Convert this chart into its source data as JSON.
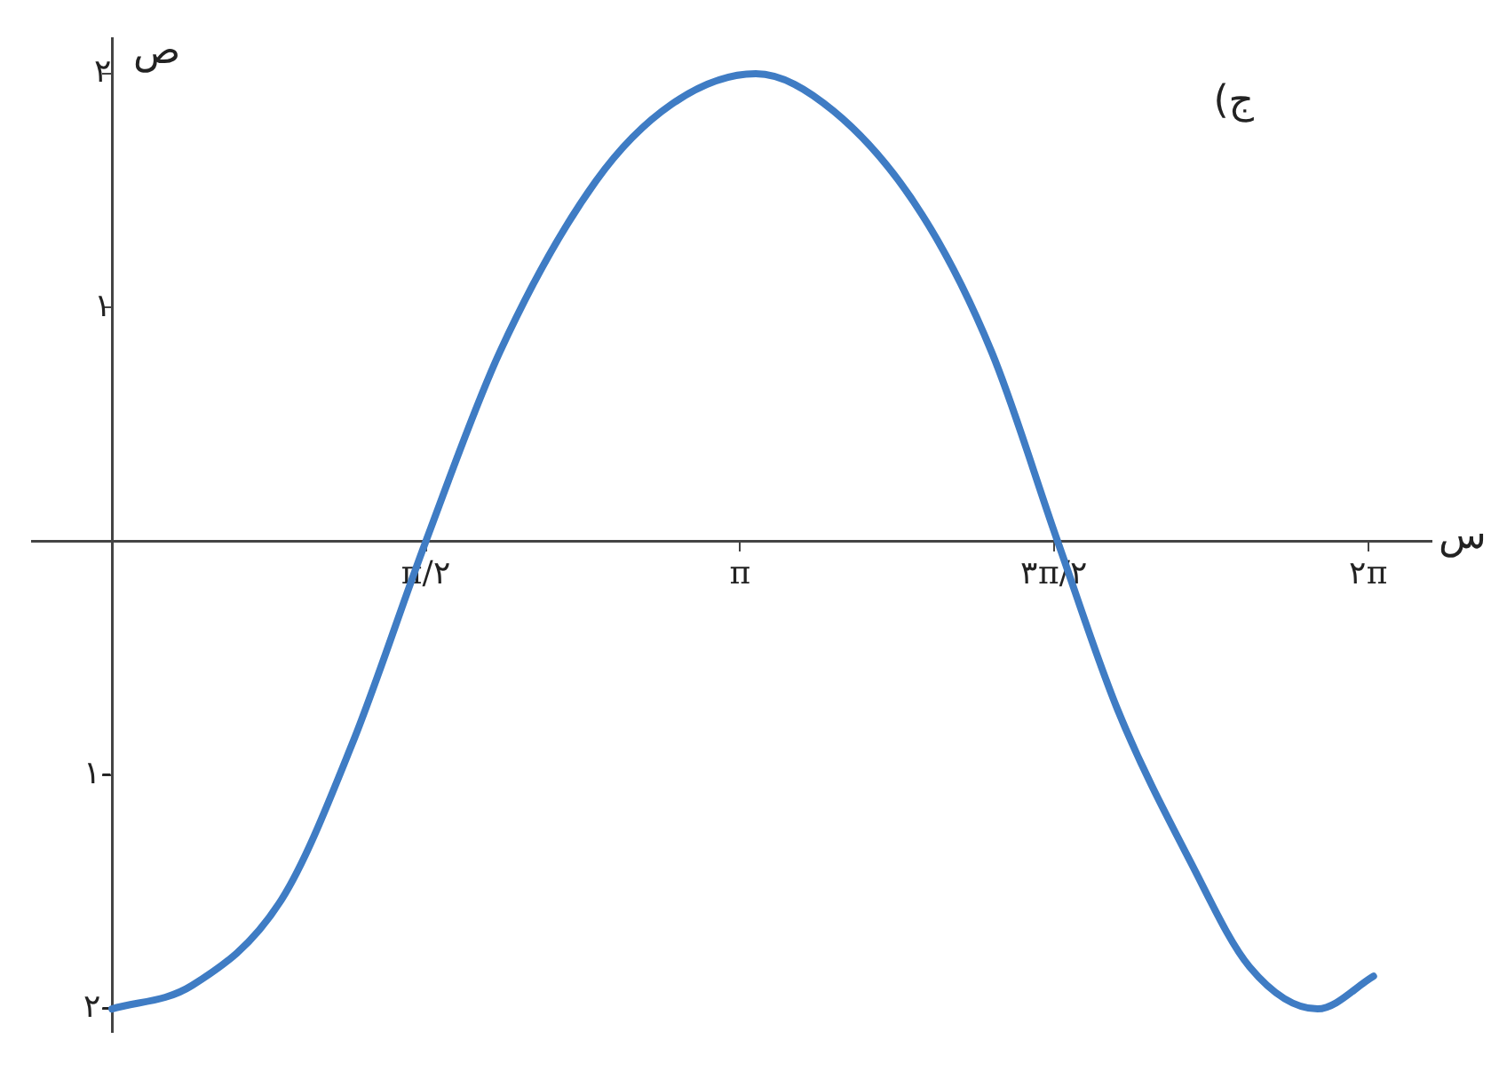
{
  "chart_data": {
    "type": "line",
    "xlabel": "س",
    "ylabel": "ص",
    "annotations": [
      "ج)"
    ],
    "x": [
      0,
      0.4,
      0.85,
      1.2,
      1.57,
      1.94,
      2.42,
      2.8,
      3.22,
      3.61,
      4.05,
      4.4,
      4.73,
      5.03,
      5.4,
      5.69,
      6.03,
      6.31
    ],
    "series": [
      {
        "color": "#3f7cc4",
        "values": [
          -2,
          -1.9,
          -1.53,
          -0.87,
          0,
          0.81,
          1.54,
          1.87,
          2,
          1.84,
          1.4,
          0.81,
          0,
          -0.72,
          -1.38,
          -1.82,
          -2,
          -1.86
        ]
      }
    ],
    "xlim": [
      -0.4,
      6.6
    ],
    "ylim": [
      -2.1,
      2.15
    ],
    "xticks": [
      {
        "value": 1.5708,
        "label": "π/٢"
      },
      {
        "value": 3.1416,
        "label": "π"
      },
      {
        "value": 4.7124,
        "label": "٣π/٢"
      },
      {
        "value": 6.2832,
        "label": "٢π"
      }
    ],
    "yticks": [
      {
        "value": 2,
        "label": "٢"
      },
      {
        "value": 1,
        "label": "١"
      },
      {
        "value": -1,
        "label": "١-"
      },
      {
        "value": -2,
        "label": "٢-"
      }
    ],
    "grid": false,
    "legend": false,
    "marker": "none",
    "line_style": "solid"
  }
}
